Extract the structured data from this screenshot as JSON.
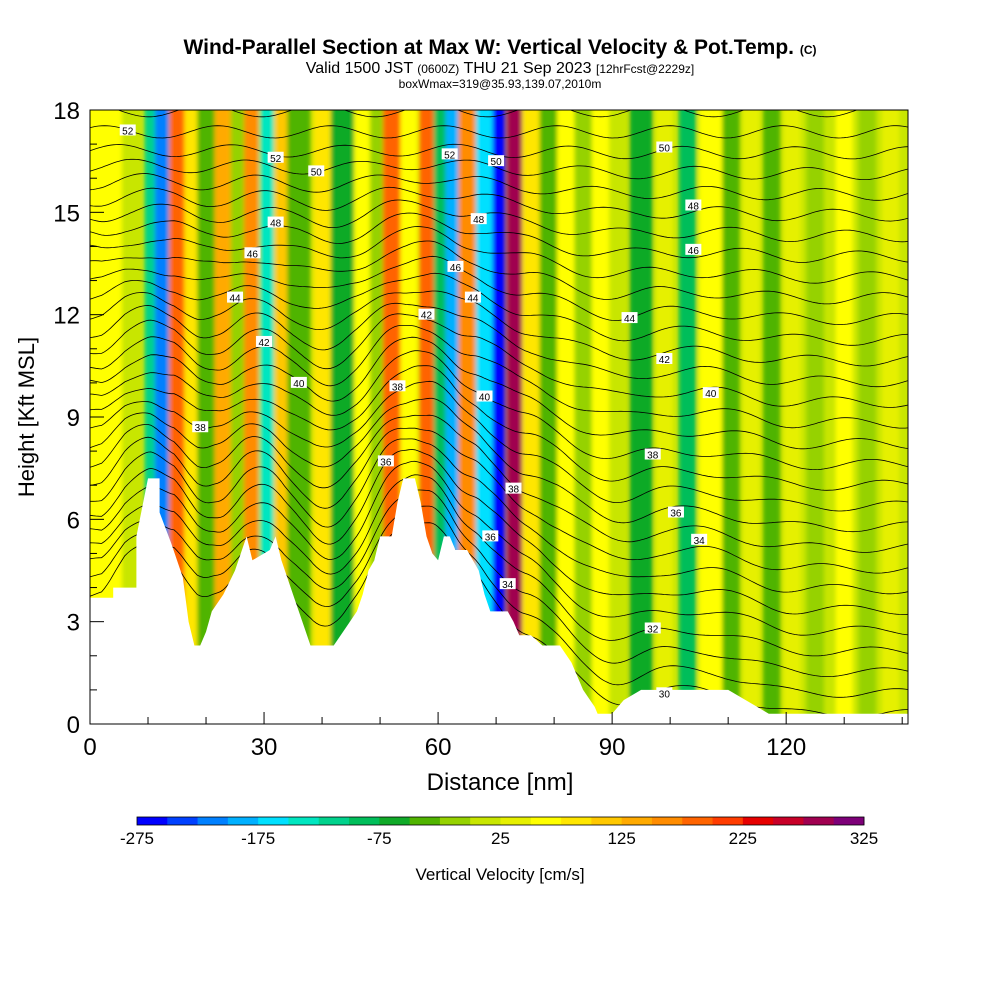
{
  "header": {
    "title": "Wind-Parallel Section at Max W: Vertical Velocity & Pot.Temp.",
    "copyright": "(C)",
    "valid_prefix": "Valid 1500 JST",
    "valid_utc": "(0600Z)",
    "valid_date": "THU 21 Sep 2023",
    "forecast": "[12hrFcst@2229z]",
    "box_info": "boxWmax=319@35.93,139.07,2010m"
  },
  "chart_data": {
    "type": "heatmap",
    "xlabel": "Distance [nm]",
    "ylabel": "Height [Kft MSL]",
    "xlim": [
      0,
      141
    ],
    "ylim": [
      0,
      18
    ],
    "x_ticks": [
      0,
      30,
      60,
      90,
      120
    ],
    "y_ticks": [
      0,
      3,
      6,
      9,
      12,
      15,
      18
    ],
    "colorbar": {
      "label": "Vertical Velocity [cm/s]",
      "min": -275,
      "max": 325,
      "step": 25,
      "tick_labels": [
        "-275",
        "-175",
        "-75",
        "25",
        "125",
        "225",
        "325"
      ],
      "colors": [
        "#0000ff",
        "#0040ff",
        "#0080ff",
        "#00b0ff",
        "#00e0ff",
        "#00e6c0",
        "#00d28c",
        "#00be5a",
        "#10aa28",
        "#50b400",
        "#96d200",
        "#c8e600",
        "#e6f000",
        "#ffff00",
        "#ffe600",
        "#ffc800",
        "#ffaa00",
        "#ff8c00",
        "#ff6400",
        "#ff3c00",
        "#e60000",
        "#c80028",
        "#a00050",
        "#7d0078"
      ]
    },
    "terrain_kft": [
      [
        0,
        3.7
      ],
      [
        4,
        3.7
      ],
      [
        4,
        4.0
      ],
      [
        8,
        4.0
      ],
      [
        8,
        5.5
      ],
      [
        10,
        7.2
      ],
      [
        12,
        7.2
      ],
      [
        12,
        6.2
      ],
      [
        14,
        5.3
      ],
      [
        16,
        4.3
      ],
      [
        17,
        3.0
      ],
      [
        18,
        2.3
      ],
      [
        19,
        2.3
      ],
      [
        20,
        2.7
      ],
      [
        21,
        3.3
      ],
      [
        23,
        3.8
      ],
      [
        25,
        4.5
      ],
      [
        26,
        5.0
      ],
      [
        27,
        5.5
      ],
      [
        28,
        4.8
      ],
      [
        31,
        5.1
      ],
      [
        32,
        5.5
      ],
      [
        33,
        4.8
      ],
      [
        35,
        3.8
      ],
      [
        37,
        2.8
      ],
      [
        38,
        2.3
      ],
      [
        42,
        2.3
      ],
      [
        44,
        2.8
      ],
      [
        46,
        3.3
      ],
      [
        47,
        3.8
      ],
      [
        48,
        4.5
      ],
      [
        49,
        4.8
      ],
      [
        50,
        5.5
      ],
      [
        52,
        5.5
      ],
      [
        53,
        6.5
      ],
      [
        54,
        7.2
      ],
      [
        56,
        7.2
      ],
      [
        57,
        6.5
      ],
      [
        58,
        5.5
      ],
      [
        59,
        5.0
      ],
      [
        60,
        4.8
      ],
      [
        61,
        5.5
      ],
      [
        62,
        5.5
      ],
      [
        63,
        5.1
      ],
      [
        65,
        5.1
      ],
      [
        66,
        4.8
      ],
      [
        67,
        4.5
      ],
      [
        68,
        3.8
      ],
      [
        69,
        3.3
      ],
      [
        72,
        3.3
      ],
      [
        73,
        3.0
      ],
      [
        74,
        2.6
      ],
      [
        76,
        2.6
      ],
      [
        78,
        2.3
      ],
      [
        81,
        2.3
      ],
      [
        83,
        1.8
      ],
      [
        85,
        1.0
      ],
      [
        87,
        0.5
      ],
      [
        87.5,
        0.3
      ],
      [
        90,
        0.3
      ],
      [
        92,
        0.7
      ],
      [
        95,
        1.0
      ],
      [
        110,
        1.0
      ],
      [
        115,
        0.5
      ],
      [
        117,
        0.3
      ],
      [
        141,
        0.3
      ]
    ],
    "w_columns": [
      {
        "x": 2.5,
        "w": 50,
        "width": 6
      },
      {
        "x": 7,
        "w": 10,
        "width": 3
      },
      {
        "x": 10.5,
        "w": -125,
        "width": 2.2
      },
      {
        "x": 12.4,
        "w": -225,
        "width": 2.4
      },
      {
        "x": 15,
        "w": 175,
        "width": 2.6
      },
      {
        "x": 17.5,
        "w": 75,
        "width": 2.5
      },
      {
        "x": 20,
        "w": -50,
        "width": 3
      },
      {
        "x": 23,
        "w": 125,
        "width": 3
      },
      {
        "x": 25.5,
        "w": -25,
        "width": 2.5
      },
      {
        "x": 27.8,
        "w": 150,
        "width": 2.5
      },
      {
        "x": 30.5,
        "w": -150,
        "width": 2.4
      },
      {
        "x": 33,
        "w": 100,
        "width": 2.5
      },
      {
        "x": 36,
        "w": -50,
        "width": 4
      },
      {
        "x": 40,
        "w": 75,
        "width": 3
      },
      {
        "x": 43.5,
        "w": -75,
        "width": 4
      },
      {
        "x": 47,
        "w": 50,
        "width": 3
      },
      {
        "x": 49.5,
        "w": -25,
        "width": 2.5
      },
      {
        "x": 52,
        "w": 175,
        "width": 3
      },
      {
        "x": 55,
        "w": 50,
        "width": 3
      },
      {
        "x": 58,
        "w": 175,
        "width": 2.5
      },
      {
        "x": 60.5,
        "w": -100,
        "width": 2.5
      },
      {
        "x": 62.5,
        "w": -200,
        "width": 2.4
      },
      {
        "x": 65,
        "w": 150,
        "width": 3
      },
      {
        "x": 68,
        "w": -175,
        "width": 3
      },
      {
        "x": 70.5,
        "w": -275,
        "width": 2.2
      },
      {
        "x": 73.2,
        "w": 275,
        "width": 2.6
      },
      {
        "x": 76,
        "w": 75,
        "width": 3
      },
      {
        "x": 79,
        "w": -50,
        "width": 3
      },
      {
        "x": 82,
        "w": 50,
        "width": 3
      },
      {
        "x": 85,
        "w": -25,
        "width": 3
      },
      {
        "x": 88,
        "w": 50,
        "width": 3
      },
      {
        "x": 91,
        "w": 0,
        "width": 3
      },
      {
        "x": 95,
        "w": -75,
        "width": 4
      },
      {
        "x": 99,
        "w": 25,
        "width": 3
      },
      {
        "x": 103,
        "w": -100,
        "width": 3
      },
      {
        "x": 107,
        "w": 50,
        "width": 4
      },
      {
        "x": 110.5,
        "w": -50,
        "width": 3
      },
      {
        "x": 114,
        "w": 25,
        "width": 3
      },
      {
        "x": 117.5,
        "w": -50,
        "width": 3
      },
      {
        "x": 121,
        "w": 25,
        "width": 3
      },
      {
        "x": 125,
        "w": -25,
        "width": 3
      },
      {
        "x": 130,
        "w": 50,
        "width": 3
      },
      {
        "x": 134,
        "w": -25,
        "width": 3
      },
      {
        "x": 138,
        "w": 25,
        "width": 3
      }
    ],
    "theta_contour_labels": [
      {
        "text": "52",
        "x": 6.5,
        "y": 17.4
      },
      {
        "text": "52",
        "x": 32,
        "y": 16.6
      },
      {
        "text": "50",
        "x": 39,
        "y": 16.2
      },
      {
        "text": "48",
        "x": 32,
        "y": 14.7
      },
      {
        "text": "46",
        "x": 28,
        "y": 13.8
      },
      {
        "text": "44",
        "x": 25,
        "y": 12.5
      },
      {
        "text": "42",
        "x": 30,
        "y": 11.2
      },
      {
        "text": "40",
        "x": 36,
        "y": 10.0
      },
      {
        "text": "38",
        "x": 19,
        "y": 8.7
      },
      {
        "text": "38",
        "x": 53,
        "y": 9.9
      },
      {
        "text": "36",
        "x": 51,
        "y": 7.7
      },
      {
        "text": "52",
        "x": 62,
        "y": 16.7
      },
      {
        "text": "50",
        "x": 70,
        "y": 16.5
      },
      {
        "text": "48",
        "x": 67,
        "y": 14.8
      },
      {
        "text": "46",
        "x": 63,
        "y": 13.4
      },
      {
        "text": "44",
        "x": 66,
        "y": 12.5
      },
      {
        "text": "42",
        "x": 58,
        "y": 12.0
      },
      {
        "text": "40",
        "x": 68,
        "y": 9.6
      },
      {
        "text": "38",
        "x": 73,
        "y": 6.9
      },
      {
        "text": "36",
        "x": 69,
        "y": 5.5
      },
      {
        "text": "34",
        "x": 72,
        "y": 4.1
      },
      {
        "text": "50",
        "x": 99,
        "y": 16.9
      },
      {
        "text": "48",
        "x": 104,
        "y": 15.2
      },
      {
        "text": "46",
        "x": 104,
        "y": 13.9
      },
      {
        "text": "44",
        "x": 93,
        "y": 11.9
      },
      {
        "text": "42",
        "x": 99,
        "y": 10.7
      },
      {
        "text": "40",
        "x": 107,
        "y": 9.7
      },
      {
        "text": "38",
        "x": 97,
        "y": 7.9
      },
      {
        "text": "36",
        "x": 101,
        "y": 6.2
      },
      {
        "text": "34",
        "x": 105,
        "y": 5.4
      },
      {
        "text": "32",
        "x": 97,
        "y": 2.8
      },
      {
        "text": "30",
        "x": 99,
        "y": 0.9
      }
    ]
  }
}
